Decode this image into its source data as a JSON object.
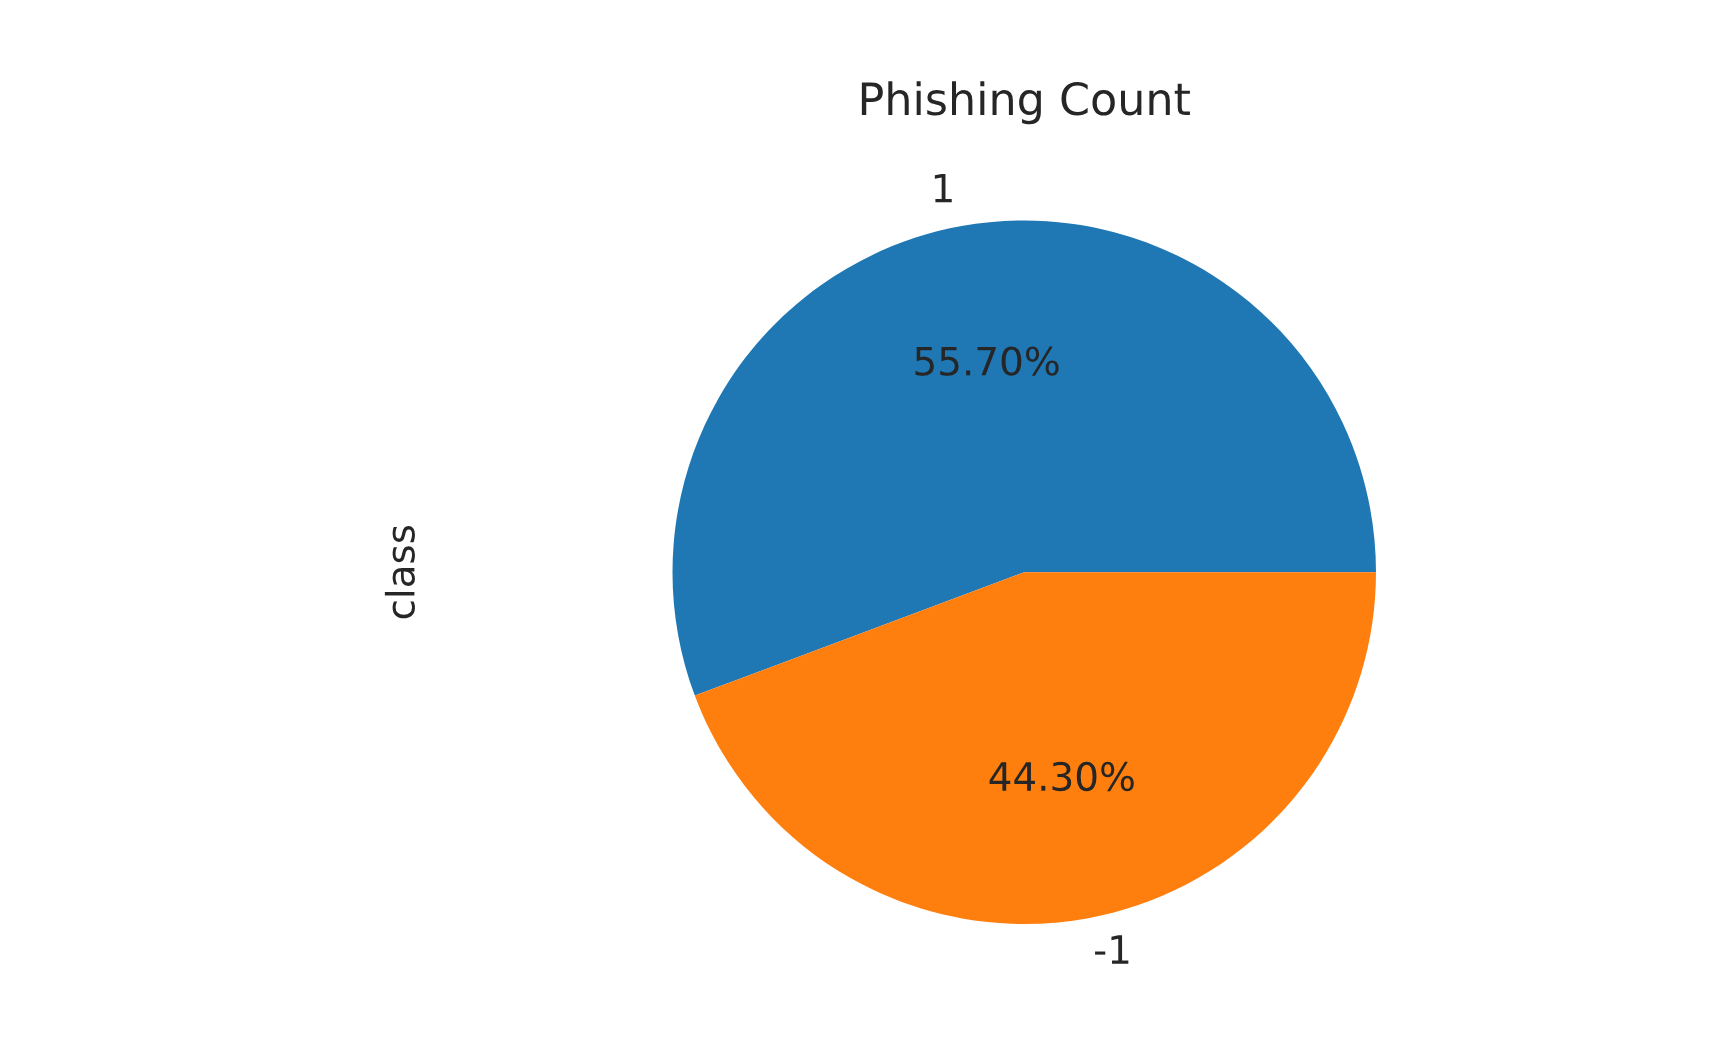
{
  "chart_data": {
    "type": "pie",
    "title": "Phishing Count",
    "ylabel": "class",
    "categories": [
      "1",
      "-1"
    ],
    "values": [
      55.7,
      44.3
    ],
    "colors": [
      "#1f77b4",
      "#ff7f0e"
    ],
    "value_labels": [
      "55.70%",
      "44.30%"
    ],
    "legend": false
  }
}
